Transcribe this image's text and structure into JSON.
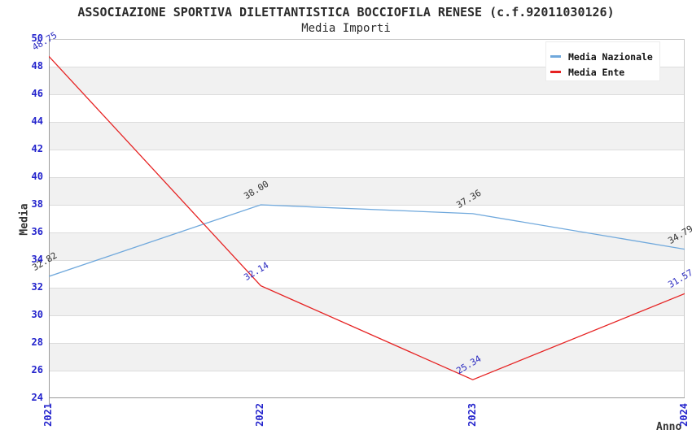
{
  "page": {
    "title": "ASSOCIAZIONE SPORTIVA DILETTANTISTICA BOCCIOFILA RENESE (c.f.92011030126)",
    "subtitle": "Media Importi"
  },
  "chart_data": {
    "type": "line",
    "title": "ASSOCIAZIONE SPORTIVA DILETTANTISTICA BOCCIOFILA RENESE (c.f.92011030126)",
    "subtitle": "Media Importi",
    "xlabel": "Anno",
    "ylabel": "Media",
    "categories": [
      "2021",
      "2022",
      "2023",
      "2024"
    ],
    "series": [
      {
        "name": "Media Nazionale",
        "color": "#6fa8dc",
        "label_color": "#333333",
        "values": [
          32.82,
          38.0,
          37.36,
          34.79
        ],
        "labels": [
          "32.82",
          "38.00",
          "37.36",
          "34.79"
        ]
      },
      {
        "name": "Media Ente",
        "color": "#e62222",
        "label_color": "#2a2ac0",
        "values": [
          48.75,
          32.14,
          25.34,
          31.57
        ],
        "labels": [
          "48.75",
          "32.14",
          "25.34",
          "31.57"
        ]
      }
    ],
    "ylim": [
      24,
      50
    ],
    "ytick_step": 2,
    "grid": true,
    "legend_position": "top-right",
    "tick_label_color": "#2323cc",
    "band_color": "#f1f1f1",
    "grid_color": "#dcdcdc",
    "border_color": "#c9c9c9",
    "axis_color": "#9a9a9a"
  }
}
